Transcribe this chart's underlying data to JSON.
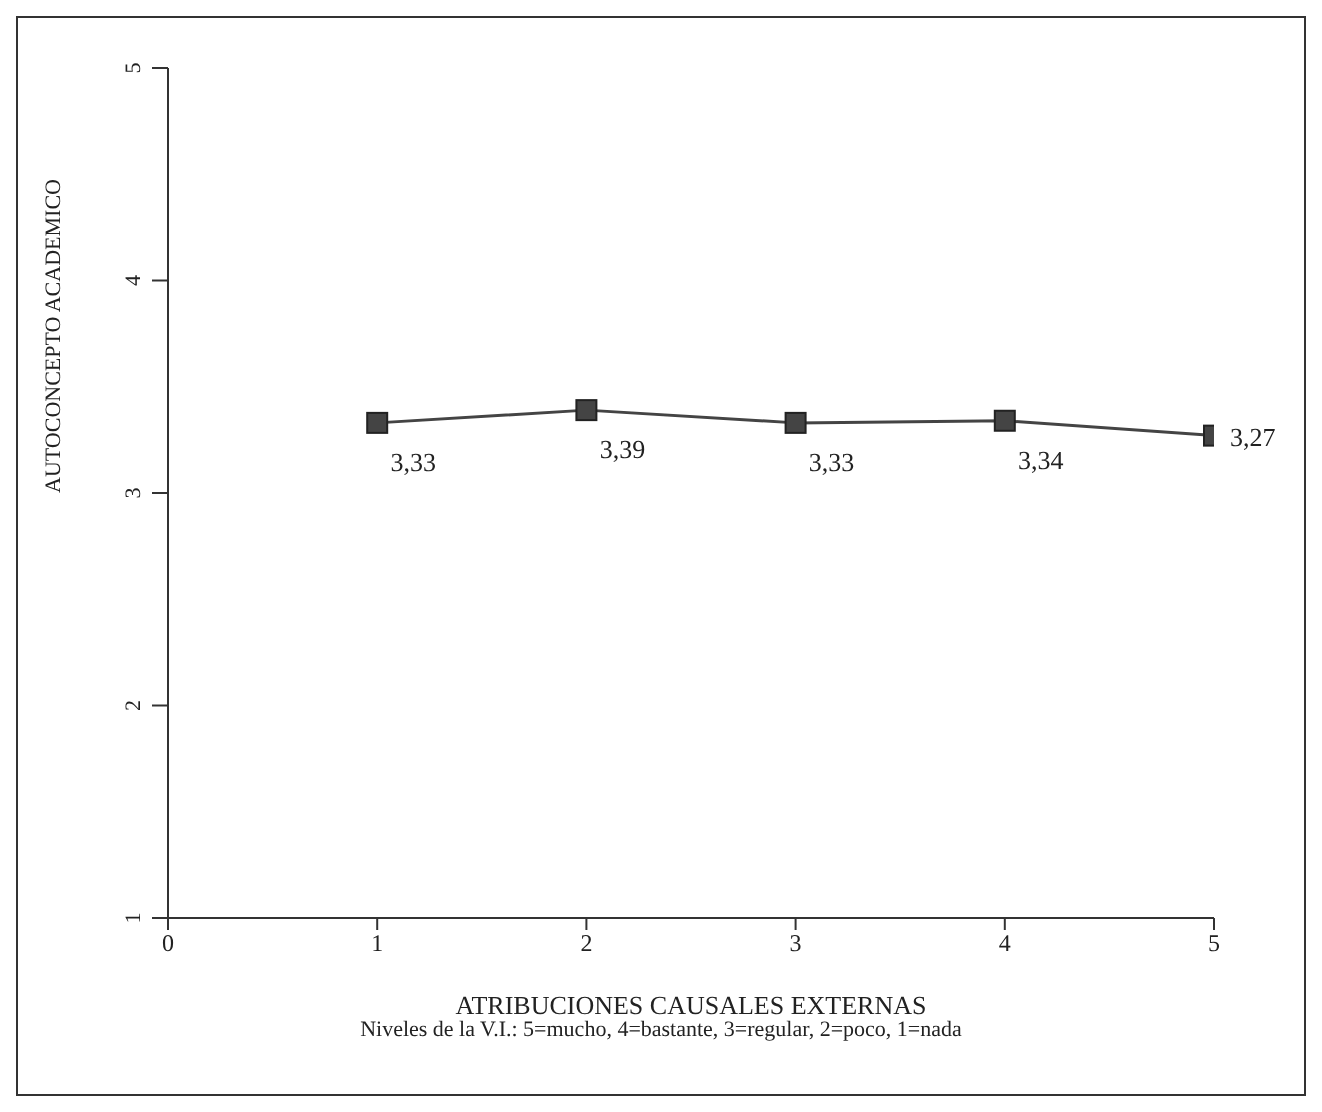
{
  "chart_data": {
    "type": "line",
    "xlabel": "ATRIBUCIONES CAUSALES EXTERNAS",
    "ylabel": "AUTOCONCEPTO ACADEMICO",
    "annotations": [
      "Niveles de la V.I.: 5=mucho, 4=bastante, 3=regular, 2=poco, 1=nada"
    ],
    "x": [
      1,
      2,
      3,
      4,
      5
    ],
    "series": [
      {
        "color": "#444444",
        "values": [
          3.33,
          3.39,
          3.33,
          3.34,
          3.27
        ],
        "value_labels": [
          "3,33",
          "3,39",
          "3,33",
          "3,34",
          "3,27"
        ]
      }
    ],
    "xlim": [
      0,
      5
    ],
    "xticks": [
      0,
      1,
      2,
      3,
      4,
      5
    ],
    "ylim": [
      1,
      5
    ],
    "yticks": [
      1,
      2,
      3,
      4,
      5
    ],
    "marker": "square",
    "line_style": "solid"
  }
}
